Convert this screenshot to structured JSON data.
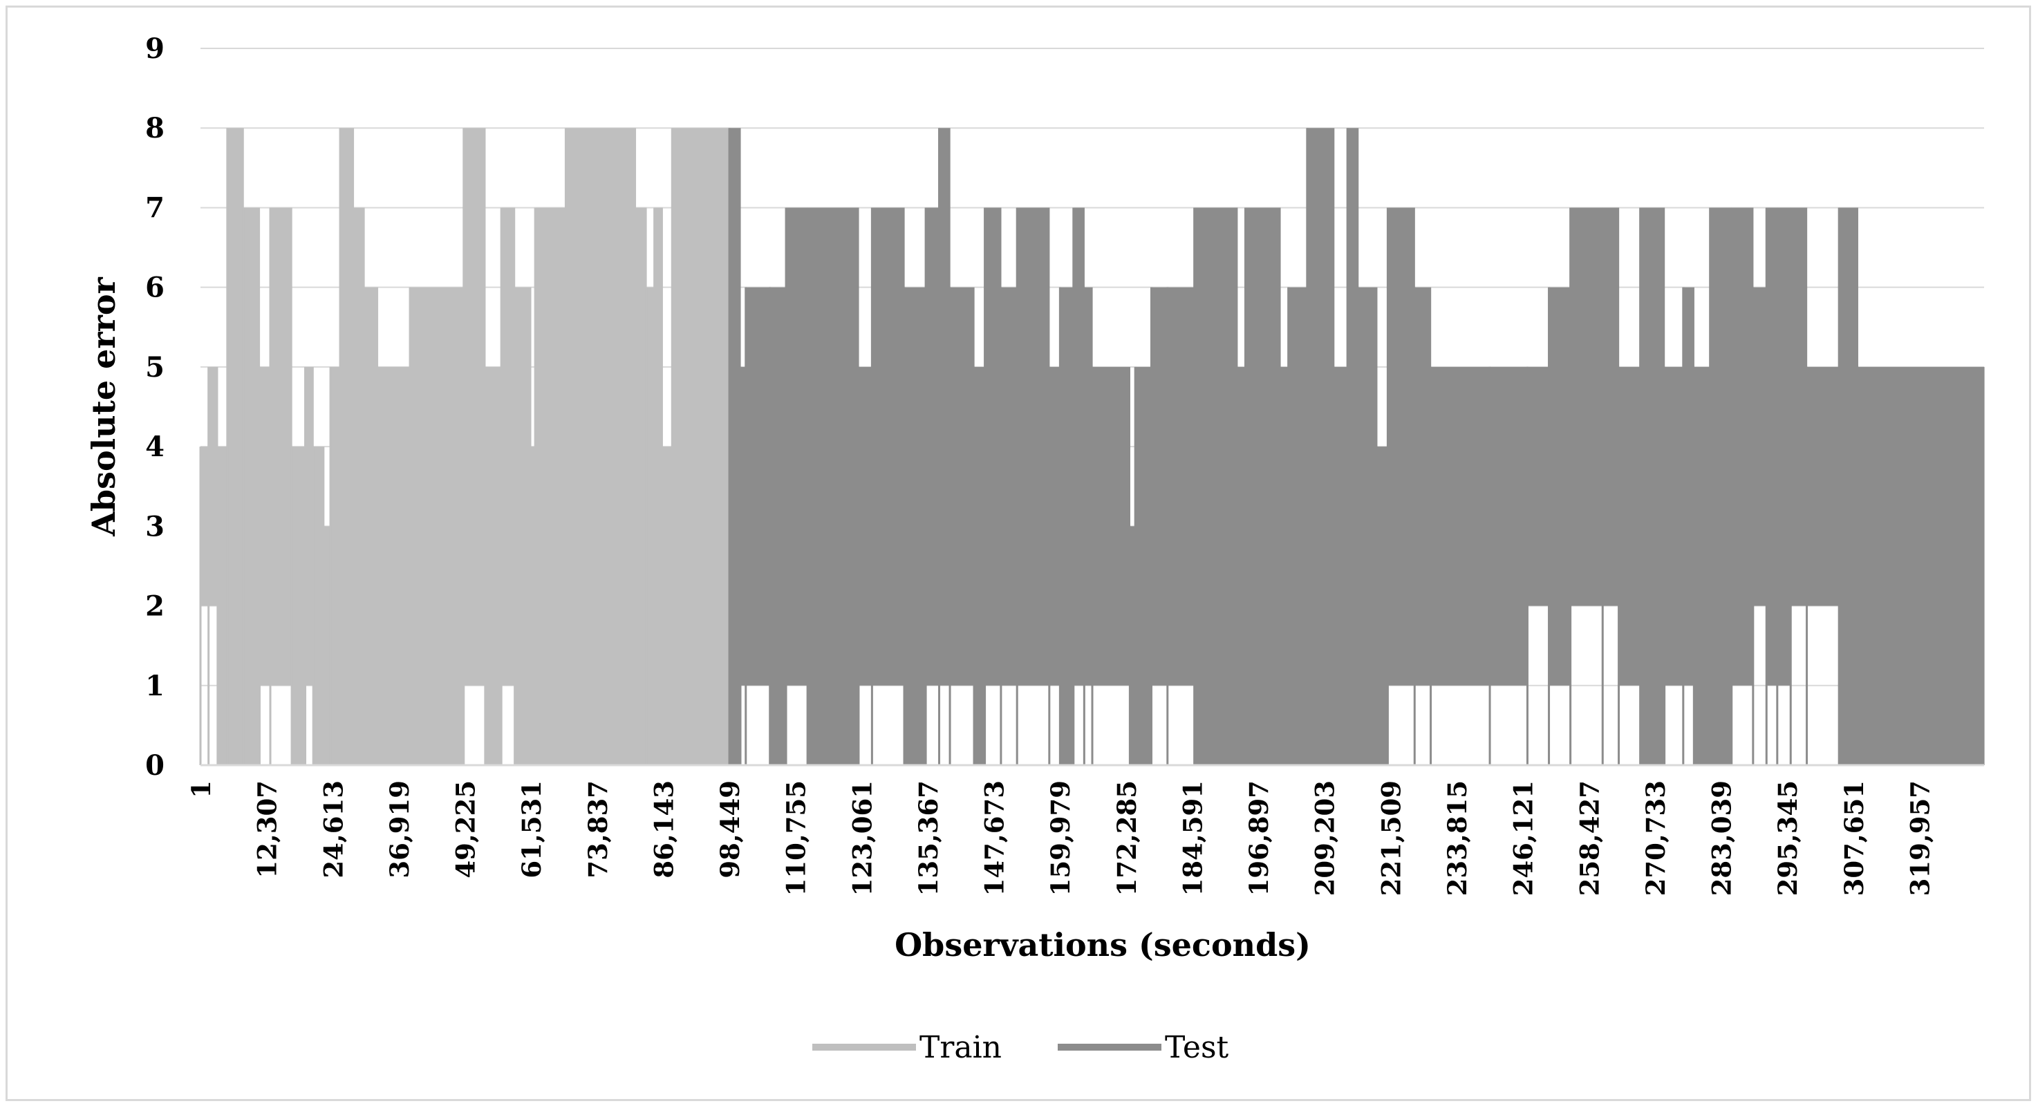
{
  "chart_data": {
    "type": "area",
    "title": "",
    "xlabel": "Observations (seconds)",
    "ylabel": "Absolute error",
    "ylim": [
      0,
      9
    ],
    "yticks": [
      "0",
      "1",
      "2",
      "3",
      "4",
      "5",
      "6",
      "7",
      "8",
      "9"
    ],
    "x_tick_labels": [
      "1",
      "12,307",
      "24,613",
      "36,919",
      "49,225",
      "61,531",
      "73,837",
      "86,143",
      "98,449",
      "110,755",
      "123,061",
      "135,367",
      "147,673",
      "159,979",
      "172,285",
      "184,591",
      "196,897",
      "209,203",
      "221,509",
      "233,815",
      "246,121",
      "258,427",
      "270,733",
      "283,039",
      "295,345",
      "307,651",
      "319,957"
    ],
    "xlim": [
      1,
      332000
    ],
    "split_at": 98449,
    "grid": true,
    "legend_position": "bottom",
    "series": [
      {
        "name": "Train",
        "color": "#bfbfbf",
        "x_range": [
          1,
          98449
        ],
        "segments": [
          [
            1,
            2,
            4
          ],
          [
            1500,
            2,
            5
          ],
          [
            3200,
            0,
            4
          ],
          [
            5000,
            0,
            8
          ],
          [
            8000,
            0,
            7
          ],
          [
            11000,
            1,
            5
          ],
          [
            13000,
            1,
            7
          ],
          [
            17000,
            0,
            4
          ],
          [
            19500,
            1,
            5
          ],
          [
            21000,
            0,
            4
          ],
          [
            23000,
            0,
            3
          ],
          [
            24200,
            0,
            5
          ],
          [
            26000,
            0,
            8
          ],
          [
            28500,
            0,
            7
          ],
          [
            30500,
            0,
            6
          ],
          [
            33000,
            0,
            5
          ],
          [
            39000,
            0,
            6
          ],
          [
            49000,
            1,
            8
          ],
          [
            53000,
            0,
            5
          ],
          [
            56000,
            1,
            7
          ],
          [
            58500,
            0,
            6
          ],
          [
            61500,
            0,
            4
          ],
          [
            62300,
            0,
            7
          ],
          [
            68000,
            0,
            8
          ],
          [
            81000,
            0,
            7
          ],
          [
            83000,
            0,
            6
          ],
          [
            84500,
            0,
            7
          ],
          [
            86000,
            0,
            4
          ],
          [
            87800,
            0,
            8
          ],
          [
            98449,
            0,
            8
          ]
        ]
      },
      {
        "name": "Test",
        "color": "#8c8c8c",
        "x_range": [
          98449,
          332000
        ],
        "segments": [
          [
            98449,
            0,
            8
          ],
          [
            100500,
            1,
            5
          ],
          [
            101500,
            1,
            6
          ],
          [
            106000,
            0,
            6
          ],
          [
            109000,
            1,
            7
          ],
          [
            113000,
            0,
            7
          ],
          [
            122500,
            1,
            5
          ],
          [
            125000,
            1,
            7
          ],
          [
            131000,
            0,
            6
          ],
          [
            135000,
            1,
            7
          ],
          [
            137500,
            1,
            8
          ],
          [
            139500,
            1,
            6
          ],
          [
            144000,
            0,
            5
          ],
          [
            146000,
            1,
            7
          ],
          [
            149000,
            1,
            6
          ],
          [
            152000,
            1,
            7
          ],
          [
            158000,
            1,
            5
          ],
          [
            160000,
            0,
            6
          ],
          [
            162500,
            1,
            7
          ],
          [
            164500,
            1,
            6
          ],
          [
            166000,
            1,
            5
          ],
          [
            173000,
            0,
            3
          ],
          [
            174000,
            0,
            5
          ],
          [
            177000,
            1,
            6
          ],
          [
            180000,
            1,
            6
          ],
          [
            185000,
            0,
            7
          ],
          [
            193000,
            0,
            5
          ],
          [
            194500,
            0,
            7
          ],
          [
            201000,
            0,
            5
          ],
          [
            202500,
            0,
            6
          ],
          [
            206000,
            0,
            8
          ],
          [
            211000,
            0,
            5
          ],
          [
            213500,
            0,
            8
          ],
          [
            215500,
            0,
            6
          ],
          [
            219000,
            0,
            4
          ],
          [
            221000,
            1,
            7
          ],
          [
            226000,
            1,
            6
          ],
          [
            229000,
            1,
            5
          ],
          [
            240000,
            1,
            5
          ],
          [
            247000,
            2,
            5
          ],
          [
            251000,
            1,
            6
          ],
          [
            255000,
            2,
            7
          ],
          [
            261000,
            2,
            7
          ],
          [
            264000,
            1,
            5
          ],
          [
            268000,
            0,
            7
          ],
          [
            272500,
            1,
            5
          ],
          [
            276000,
            1,
            6
          ],
          [
            278000,
            0,
            5
          ],
          [
            281000,
            0,
            7
          ],
          [
            285000,
            1,
            7
          ],
          [
            289000,
            2,
            6
          ],
          [
            291500,
            1,
            7
          ],
          [
            293500,
            1,
            7
          ],
          [
            296000,
            2,
            7
          ],
          [
            299000,
            2,
            5
          ],
          [
            305000,
            0,
            7
          ],
          [
            308500,
            0,
            5
          ],
          [
            332000,
            0,
            5
          ]
        ]
      }
    ]
  }
}
